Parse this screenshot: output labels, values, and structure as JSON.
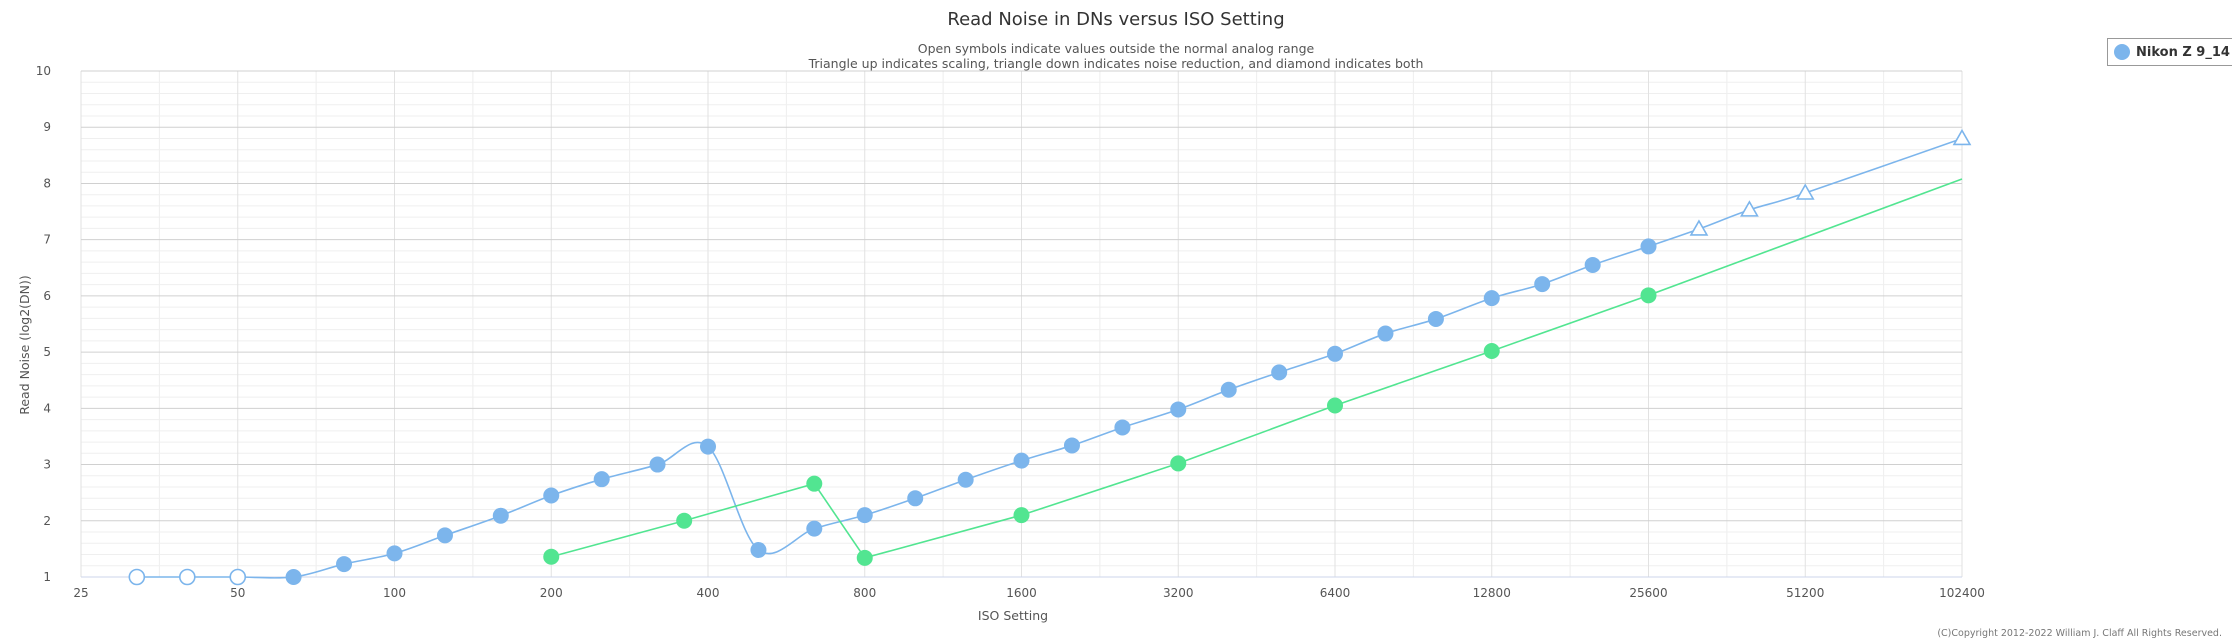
{
  "chart_data": {
    "type": "line",
    "title": "Read Noise in DNs versus ISO Setting",
    "subtitle_line1": "Open symbols indicate values outside the normal analog range",
    "subtitle_line2": "Triangle up indicates scaling, triangle down indicates noise reduction, and diamond indicates both",
    "xlabel": "ISO Setting",
    "ylabel": "Read Noise (log2(DN))",
    "x_scale": "log2",
    "xlim": [
      25,
      102400
    ],
    "ylim": [
      1,
      10
    ],
    "x_ticks": [
      25,
      50,
      100,
      200,
      400,
      800,
      1600,
      3200,
      6400,
      12800,
      25600,
      51200,
      102400
    ],
    "y_ticks": [
      1,
      2,
      3,
      4,
      5,
      6,
      7,
      8,
      9,
      10
    ],
    "grid": true,
    "legend_position": "top-right",
    "credit": "(C)Copyright 2012-2022 William J. Claff All Rights Reserved.",
    "series": [
      {
        "name": "Nikon Z 9_14",
        "color": "#7cb5ec",
        "show_in_legend": true,
        "points": [
          {
            "x": 32,
            "y": 1.0,
            "marker": "open-circle"
          },
          {
            "x": 40,
            "y": 1.0,
            "marker": "open-circle"
          },
          {
            "x": 50,
            "y": 1.0,
            "marker": "open-circle"
          },
          {
            "x": 64,
            "y": 1.0,
            "marker": "circle"
          },
          {
            "x": 80,
            "y": 1.23,
            "marker": "circle"
          },
          {
            "x": 100,
            "y": 1.42,
            "marker": "circle"
          },
          {
            "x": 125,
            "y": 1.74,
            "marker": "circle"
          },
          {
            "x": 160,
            "y": 2.09,
            "marker": "circle"
          },
          {
            "x": 200,
            "y": 2.45,
            "marker": "circle"
          },
          {
            "x": 250,
            "y": 2.74,
            "marker": "circle"
          },
          {
            "x": 320,
            "y": 3.0,
            "marker": "circle"
          },
          {
            "x": 400,
            "y": 3.32,
            "marker": "circle"
          },
          {
            "x": 500,
            "y": 1.48,
            "marker": "circle"
          },
          {
            "x": 640,
            "y": 1.86,
            "marker": "circle"
          },
          {
            "x": 800,
            "y": 2.1,
            "marker": "circle"
          },
          {
            "x": 1000,
            "y": 2.4,
            "marker": "circle"
          },
          {
            "x": 1250,
            "y": 2.73,
            "marker": "circle"
          },
          {
            "x": 1600,
            "y": 3.07,
            "marker": "circle"
          },
          {
            "x": 2000,
            "y": 3.34,
            "marker": "circle"
          },
          {
            "x": 2500,
            "y": 3.66,
            "marker": "circle"
          },
          {
            "x": 3200,
            "y": 3.98,
            "marker": "circle"
          },
          {
            "x": 4000,
            "y": 4.33,
            "marker": "circle"
          },
          {
            "x": 5000,
            "y": 4.64,
            "marker": "circle"
          },
          {
            "x": 6400,
            "y": 4.97,
            "marker": "circle"
          },
          {
            "x": 8000,
            "y": 5.33,
            "marker": "circle"
          },
          {
            "x": 10000,
            "y": 5.59,
            "marker": "circle"
          },
          {
            "x": 12800,
            "y": 5.96,
            "marker": "circle"
          },
          {
            "x": 16000,
            "y": 6.21,
            "marker": "circle"
          },
          {
            "x": 20000,
            "y": 6.55,
            "marker": "circle"
          },
          {
            "x": 25600,
            "y": 6.88,
            "marker": "circle"
          },
          {
            "x": 32000,
            "y": 7.19,
            "marker": "open-triangle-up"
          },
          {
            "x": 40000,
            "y": 7.53,
            "marker": "open-triangle-up"
          },
          {
            "x": 51200,
            "y": 7.83,
            "marker": "open-triangle-up"
          },
          {
            "x": 102400,
            "y": 8.8,
            "marker": "open-triangle-up"
          }
        ]
      },
      {
        "name": "",
        "color": "#52e591",
        "show_in_legend": false,
        "points": [
          {
            "x": 200,
            "y": 1.36,
            "marker": "circle"
          },
          {
            "x": 360,
            "y": 2.0,
            "marker": "circle"
          },
          {
            "x": 640,
            "y": 2.66,
            "marker": "circle"
          },
          {
            "x": 800,
            "y": 1.34,
            "marker": "circle"
          },
          {
            "x": 1600,
            "y": 2.1,
            "marker": "circle"
          },
          {
            "x": 3200,
            "y": 3.02,
            "marker": "circle"
          },
          {
            "x": 6400,
            "y": 4.05,
            "marker": "circle"
          },
          {
            "x": 12800,
            "y": 5.02,
            "marker": "circle"
          },
          {
            "x": 25600,
            "y": 6.01,
            "marker": "circle"
          },
          {
            "x": 102400,
            "y": 8.08,
            "marker": "none"
          }
        ]
      }
    ]
  }
}
